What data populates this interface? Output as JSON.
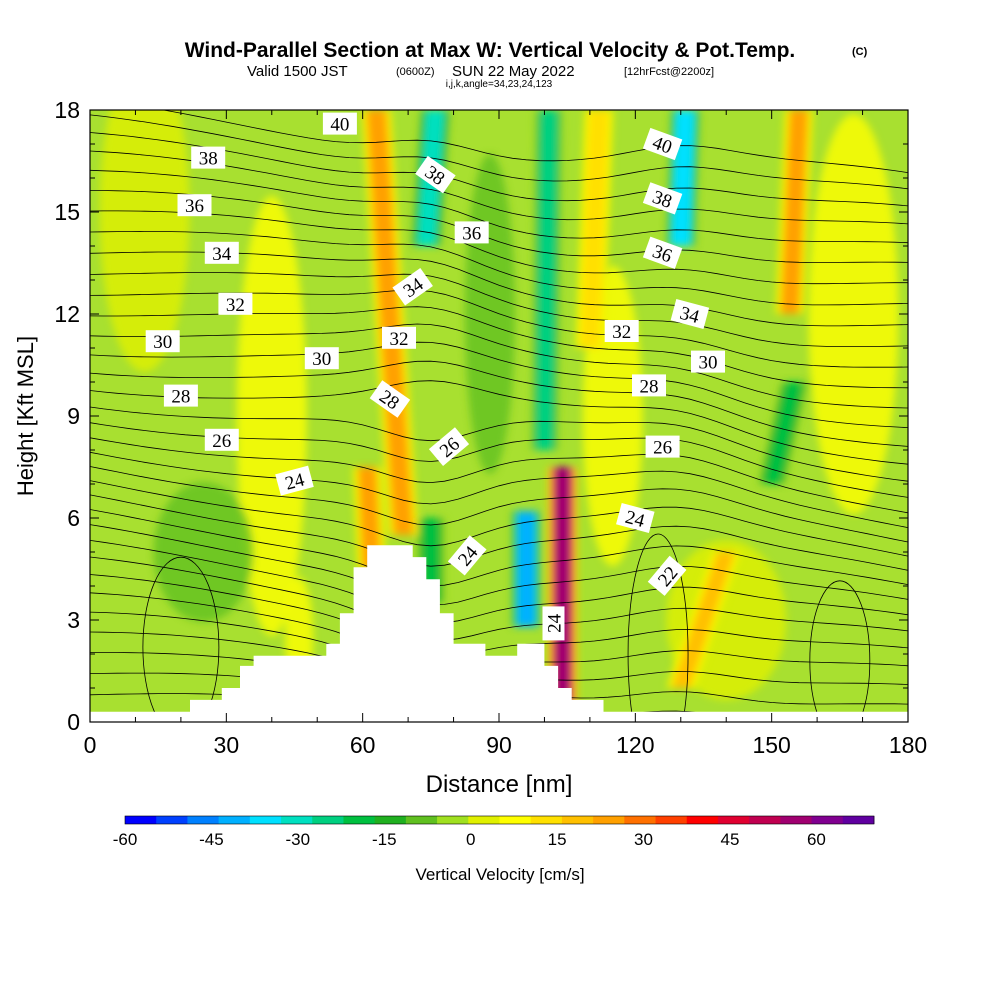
{
  "chart_data": {
    "type": "heatmap",
    "title": "Wind-Parallel Section at Max W: Vertical Velocity & Pot.Temp.",
    "title_mark": "(C)",
    "subtitle_parts": [
      "Valid 1500 JST",
      "(0600Z)",
      "SUN 22 May 2022",
      "[12hrFcst@2200z]"
    ],
    "subsubtitle": "i,j,k,angle=34,23,24,123",
    "xlabel": "Distance [nm]",
    "ylabel": "Height [Kft MSL]",
    "xlim": [
      0,
      180
    ],
    "ylim": [
      0,
      18
    ],
    "x_ticks": [
      "0",
      "30",
      "60",
      "90",
      "120",
      "150",
      "180"
    ],
    "y_ticks": [
      "0",
      "3",
      "6",
      "9",
      "12",
      "15",
      "18"
    ],
    "colorbar": {
      "label": "Vertical Velocity [cm/s]",
      "ticks": [
        "-60",
        "-45",
        "-30",
        "-15",
        "0",
        "15",
        "30",
        "45",
        "60"
      ],
      "range": [
        -60,
        70
      ],
      "colors": [
        "#0000ff",
        "#0040ff",
        "#0080ff",
        "#00b0ff",
        "#00e0ff",
        "#00e0c0",
        "#00d080",
        "#00c040",
        "#20b020",
        "#60c020",
        "#a0e020",
        "#e0f000",
        "#ffff00",
        "#ffe000",
        "#ffc000",
        "#ffa000",
        "#ff7000",
        "#ff4000",
        "#ff0000",
        "#e00030",
        "#c00050",
        "#a00070",
        "#800090",
        "#6000a0"
      ]
    },
    "theta_contour_labels": [
      {
        "value": "40",
        "x": 55,
        "y": 17.6,
        "angle": 0
      },
      {
        "value": "38",
        "x": 26,
        "y": 16.6,
        "angle": 0
      },
      {
        "value": "38",
        "x": 76,
        "y": 16.1,
        "angle": 35
      },
      {
        "value": "40",
        "x": 126,
        "y": 17.0,
        "angle": 20
      },
      {
        "value": "36",
        "x": 23,
        "y": 15.2,
        "angle": 0
      },
      {
        "value": "38",
        "x": 126,
        "y": 15.4,
        "angle": 20
      },
      {
        "value": "34",
        "x": 29,
        "y": 13.8,
        "angle": 0
      },
      {
        "value": "36",
        "x": 84,
        "y": 14.4,
        "angle": 0
      },
      {
        "value": "36",
        "x": 126,
        "y": 13.8,
        "angle": 20
      },
      {
        "value": "32",
        "x": 32,
        "y": 12.3,
        "angle": 0
      },
      {
        "value": "34",
        "x": 71,
        "y": 12.8,
        "angle": -35
      },
      {
        "value": "34",
        "x": 132,
        "y": 12.0,
        "angle": 15
      },
      {
        "value": "30",
        "x": 16,
        "y": 11.2,
        "angle": 0
      },
      {
        "value": "32",
        "x": 68,
        "y": 11.3,
        "angle": 0
      },
      {
        "value": "32",
        "x": 117,
        "y": 11.5,
        "angle": 0
      },
      {
        "value": "30",
        "x": 51,
        "y": 10.7,
        "angle": 0
      },
      {
        "value": "30",
        "x": 136,
        "y": 10.6,
        "angle": 0
      },
      {
        "value": "28",
        "x": 20,
        "y": 9.6,
        "angle": 0
      },
      {
        "value": "28",
        "x": 66,
        "y": 9.5,
        "angle": 35
      },
      {
        "value": "28",
        "x": 123,
        "y": 9.9,
        "angle": 0
      },
      {
        "value": "26",
        "x": 29,
        "y": 8.3,
        "angle": 0
      },
      {
        "value": "26",
        "x": 79,
        "y": 8.1,
        "angle": -40
      },
      {
        "value": "26",
        "x": 126,
        "y": 8.1,
        "angle": 0
      },
      {
        "value": "24",
        "x": 45,
        "y": 7.1,
        "angle": -15
      },
      {
        "value": "24",
        "x": 120,
        "y": 6.0,
        "angle": 15
      },
      {
        "value": "24",
        "x": 83,
        "y": 4.9,
        "angle": -50
      },
      {
        "value": "22",
        "x": 127,
        "y": 4.3,
        "angle": -50
      },
      {
        "value": "24",
        "x": 102,
        "y": 2.9,
        "angle": -90
      }
    ],
    "updraft_bands": [
      {
        "w": 55,
        "x_bottom": 104,
        "x_top": 104,
        "z_bottom": 0.5,
        "z_top": 7.5
      },
      {
        "w": 25,
        "x_bottom": 69,
        "x_top": 63,
        "z_bottom": 5.5,
        "z_top": 18
      },
      {
        "w": 22,
        "x_bottom": 62,
        "x_top": 61,
        "z_bottom": 4.5,
        "z_top": 7.5
      },
      {
        "w": 18,
        "x_bottom": 130,
        "x_top": 140,
        "z_bottom": 1.0,
        "z_top": 5.0
      },
      {
        "w": 22,
        "x_bottom": 154,
        "x_top": 156,
        "z_bottom": 12.0,
        "z_top": 18
      },
      {
        "w": 14,
        "x_bottom": 110,
        "x_top": 112,
        "z_bottom": 11.0,
        "z_top": 18
      }
    ],
    "downdraft_bands": [
      {
        "w": -42,
        "x_bottom": 96,
        "x_top": 96,
        "z_bottom": 2.8,
        "z_top": 6.2
      },
      {
        "w": -30,
        "x_bottom": 74,
        "x_top": 76,
        "z_bottom": 14.0,
        "z_top": 18
      },
      {
        "w": -38,
        "x_bottom": 130,
        "x_top": 131,
        "z_bottom": 14.0,
        "z_top": 18
      },
      {
        "w": -24,
        "x_bottom": 100,
        "x_top": 101,
        "z_bottom": 8.0,
        "z_top": 18
      },
      {
        "w": -22,
        "x_bottom": 75,
        "x_top": 75,
        "z_bottom": 3.5,
        "z_top": 6.0
      },
      {
        "w": -20,
        "x_bottom": 150,
        "x_top": 155,
        "z_bottom": 7.0,
        "z_top": 10.0
      }
    ],
    "terrain_profile": [
      {
        "x": 0,
        "z": 0.3
      },
      {
        "x": 22,
        "z": 0.3
      },
      {
        "x": 22,
        "z": 0.65
      },
      {
        "x": 29,
        "z": 0.65
      },
      {
        "x": 29,
        "z": 1.0
      },
      {
        "x": 33,
        "z": 1.0
      },
      {
        "x": 33,
        "z": 1.65
      },
      {
        "x": 36,
        "z": 1.65
      },
      {
        "x": 36,
        "z": 1.95
      },
      {
        "x": 52,
        "z": 1.95
      },
      {
        "x": 52,
        "z": 2.3
      },
      {
        "x": 55,
        "z": 2.3
      },
      {
        "x": 55,
        "z": 3.2
      },
      {
        "x": 58,
        "z": 3.2
      },
      {
        "x": 58,
        "z": 4.55
      },
      {
        "x": 61,
        "z": 4.55
      },
      {
        "x": 61,
        "z": 5.2
      },
      {
        "x": 71,
        "z": 5.2
      },
      {
        "x": 71,
        "z": 4.85
      },
      {
        "x": 74,
        "z": 4.85
      },
      {
        "x": 74,
        "z": 4.2
      },
      {
        "x": 77,
        "z": 4.2
      },
      {
        "x": 77,
        "z": 3.2
      },
      {
        "x": 80,
        "z": 3.2
      },
      {
        "x": 80,
        "z": 2.3
      },
      {
        "x": 87,
        "z": 2.3
      },
      {
        "x": 87,
        "z": 1.95
      },
      {
        "x": 94,
        "z": 1.95
      },
      {
        "x": 94,
        "z": 2.3
      },
      {
        "x": 100,
        "z": 2.3
      },
      {
        "x": 100,
        "z": 1.65
      },
      {
        "x": 103,
        "z": 1.65
      },
      {
        "x": 103,
        "z": 1.0
      },
      {
        "x": 106,
        "z": 1.0
      },
      {
        "x": 106,
        "z": 0.65
      },
      {
        "x": 113,
        "z": 0.65
      },
      {
        "x": 113,
        "z": 0.3
      },
      {
        "x": 180,
        "z": 0.3
      }
    ]
  }
}
